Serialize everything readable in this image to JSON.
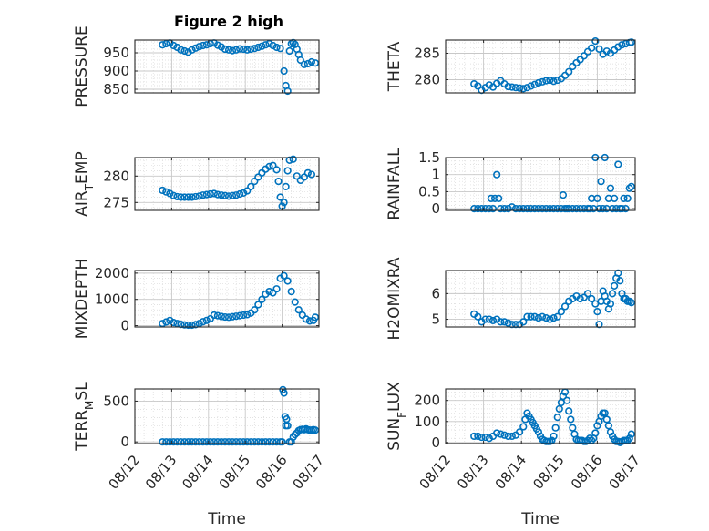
{
  "figure": {
    "title": "Figure 2 high"
  },
  "colors": {
    "marker": "#0072BD",
    "axis": "#262626",
    "grid": "#d9d9d9",
    "background": "#ffffff"
  },
  "chart_data": [
    {
      "type": "scatter",
      "ylabel": "PRESSURE",
      "ylim": [
        840,
        985
      ],
      "yticks": [
        850,
        900,
        950
      ],
      "xlim": [
        0,
        5
      ],
      "grid": true,
      "x": [
        0.75,
        0.85,
        0.95,
        1.05,
        1.15,
        1.25,
        1.35,
        1.45,
        1.55,
        1.65,
        1.75,
        1.85,
        1.95,
        2.05,
        2.15,
        2.25,
        2.35,
        2.45,
        2.55,
        2.65,
        2.75,
        2.85,
        2.95,
        3.05,
        3.15,
        3.25,
        3.35,
        3.45,
        3.55,
        3.65,
        3.75,
        3.85,
        3.95,
        4.05,
        4.1,
        4.15,
        4.2,
        4.25,
        4.3,
        4.35,
        4.4,
        4.45,
        4.5,
        4.6,
        4.7,
        4.8,
        4.9
      ],
      "y": [
        972,
        975,
        977,
        970,
        965,
        958,
        955,
        952,
        958,
        963,
        967,
        970,
        972,
        975,
        977,
        971,
        966,
        960,
        958,
        956,
        958,
        961,
        960,
        958,
        960,
        962,
        965,
        968,
        972,
        975,
        970,
        965,
        962,
        900,
        860,
        845,
        955,
        975,
        978,
        973,
        960,
        945,
        930,
        918,
        920,
        925,
        922
      ]
    },
    {
      "type": "scatter",
      "ylabel": "THETA",
      "ylim": [
        277.5,
        287.5
      ],
      "yticks": [
        280,
        285
      ],
      "xlim": [
        0,
        5
      ],
      "grid": true,
      "x": [
        0.75,
        0.85,
        0.95,
        1.05,
        1.15,
        1.25,
        1.35,
        1.45,
        1.55,
        1.65,
        1.75,
        1.85,
        1.95,
        2.05,
        2.15,
        2.25,
        2.35,
        2.45,
        2.55,
        2.65,
        2.75,
        2.85,
        2.95,
        3.05,
        3.15,
        3.25,
        3.35,
        3.45,
        3.55,
        3.65,
        3.75,
        3.85,
        3.95,
        4.05,
        4.15,
        4.25,
        4.35,
        4.45,
        4.55,
        4.65,
        4.75,
        4.85,
        4.9
      ],
      "y": [
        279.2,
        278.8,
        278.0,
        278.5,
        279.0,
        278.6,
        279.3,
        279.8,
        279.2,
        278.7,
        278.6,
        278.5,
        278.4,
        278.3,
        278.5,
        278.8,
        279.1,
        279.4,
        279.6,
        279.8,
        279.9,
        279.7,
        279.9,
        280.2,
        280.8,
        281.5,
        282.5,
        283.2,
        283.8,
        284.5,
        285.3,
        286.0,
        287.3,
        285.8,
        284.8,
        285.4,
        285.0,
        285.6,
        286.2,
        286.6,
        286.8,
        287.0,
        287.1
      ]
    },
    {
      "type": "scatter",
      "ylabel": "AIR_TEMP",
      "ylim": [
        273.5,
        283.5
      ],
      "yticks": [
        275,
        280
      ],
      "xlim": [
        0,
        5
      ],
      "grid": true,
      "x": [
        0.75,
        0.85,
        0.95,
        1.05,
        1.15,
        1.25,
        1.35,
        1.45,
        1.55,
        1.65,
        1.75,
        1.85,
        1.95,
        2.05,
        2.15,
        2.25,
        2.35,
        2.45,
        2.55,
        2.65,
        2.75,
        2.85,
        2.95,
        3.05,
        3.15,
        3.25,
        3.35,
        3.45,
        3.55,
        3.65,
        3.75,
        3.85,
        3.9,
        3.95,
        4.0,
        4.05,
        4.1,
        4.15,
        4.2,
        4.3,
        4.4,
        4.5,
        4.6,
        4.7,
        4.8
      ],
      "y": [
        277.3,
        277.0,
        276.7,
        276.3,
        276.1,
        276.0,
        276.0,
        276.0,
        276.0,
        276.1,
        276.2,
        276.4,
        276.5,
        276.6,
        276.7,
        276.5,
        276.4,
        276.3,
        276.2,
        276.3,
        276.4,
        276.6,
        276.8,
        277.2,
        278.0,
        279.0,
        279.8,
        280.6,
        281.3,
        281.8,
        282.0,
        281.2,
        279.0,
        276.0,
        274.3,
        275.0,
        278.0,
        281.0,
        283.0,
        283.2,
        280.0,
        279.2,
        279.8,
        280.6,
        280.3
      ]
    },
    {
      "type": "scatter",
      "ylabel": "RAINFALL",
      "ylim": [
        -0.05,
        1.5
      ],
      "yticks": [
        0,
        0.5,
        1,
        1.5
      ],
      "xlim": [
        0,
        5
      ],
      "grid": true,
      "x": [
        0.75,
        0.85,
        0.95,
        1.05,
        1.15,
        1.2,
        1.25,
        1.3,
        1.35,
        1.4,
        1.45,
        1.55,
        1.65,
        1.75,
        1.85,
        1.95,
        2.05,
        2.15,
        2.25,
        2.35,
        2.45,
        2.55,
        2.65,
        2.75,
        2.85,
        2.95,
        3.05,
        3.1,
        3.15,
        3.2,
        3.25,
        3.35,
        3.45,
        3.55,
        3.65,
        3.75,
        3.8,
        3.85,
        3.9,
        3.95,
        4.0,
        4.05,
        4.1,
        4.15,
        4.2,
        4.25,
        4.3,
        4.35,
        4.4,
        4.45,
        4.5,
        4.55,
        4.6,
        4.65,
        4.7,
        4.75,
        4.8,
        4.85,
        4.9
      ],
      "y": [
        0,
        0,
        0,
        0,
        0,
        0.3,
        0,
        0.3,
        1.0,
        0.3,
        0,
        0,
        0,
        0.05,
        0,
        0,
        0,
        0,
        0,
        0,
        0,
        0,
        0,
        0,
        0,
        0,
        0,
        0.4,
        0,
        0,
        0,
        0,
        0,
        0,
        0,
        0,
        0,
        0.3,
        0,
        1.5,
        0.3,
        0,
        0.8,
        0,
        1.5,
        0,
        0.3,
        0.6,
        0,
        0.3,
        0,
        1.3,
        0,
        0,
        0.3,
        0,
        0.3,
        0.6,
        0.65
      ]
    },
    {
      "type": "scatter",
      "ylabel": "MIXDEPTH",
      "ylim": [
        -50,
        2100
      ],
      "yticks": [
        0,
        1000,
        2000
      ],
      "xlim": [
        0,
        5
      ],
      "grid": true,
      "x": [
        0.75,
        0.85,
        0.95,
        1.05,
        1.15,
        1.25,
        1.35,
        1.45,
        1.55,
        1.65,
        1.75,
        1.85,
        1.95,
        2.05,
        2.15,
        2.25,
        2.35,
        2.45,
        2.55,
        2.65,
        2.75,
        2.85,
        2.95,
        3.05,
        3.15,
        3.25,
        3.35,
        3.45,
        3.55,
        3.65,
        3.75,
        3.85,
        3.95,
        4.05,
        4.15,
        4.25,
        4.35,
        4.45,
        4.55,
        4.65,
        4.75,
        4.85,
        4.9
      ],
      "y": [
        80,
        140,
        200,
        120,
        80,
        50,
        30,
        20,
        20,
        40,
        80,
        150,
        200,
        260,
        400,
        380,
        350,
        330,
        320,
        340,
        360,
        380,
        400,
        420,
        480,
        600,
        800,
        1000,
        1200,
        1300,
        1250,
        1400,
        1800,
        1900,
        1700,
        1300,
        900,
        600,
        400,
        250,
        180,
        200,
        320
      ]
    },
    {
      "type": "scatter",
      "ylabel": "H2OMIXRA",
      "ylim": [
        4.7,
        6.9
      ],
      "yticks": [
        5,
        6
      ],
      "xlim": [
        0,
        5
      ],
      "grid": true,
      "x": [
        0.75,
        0.85,
        0.95,
        1.05,
        1.15,
        1.25,
        1.35,
        1.45,
        1.55,
        1.65,
        1.75,
        1.85,
        1.95,
        2.05,
        2.15,
        2.25,
        2.35,
        2.45,
        2.55,
        2.65,
        2.75,
        2.85,
        2.95,
        3.05,
        3.15,
        3.25,
        3.35,
        3.45,
        3.55,
        3.65,
        3.75,
        3.85,
        3.95,
        4.0,
        4.05,
        4.1,
        4.15,
        4.2,
        4.25,
        4.3,
        4.35,
        4.4,
        4.45,
        4.5,
        4.55,
        4.6,
        4.65,
        4.7,
        4.75,
        4.8,
        4.85,
        4.9
      ],
      "y": [
        5.2,
        5.1,
        4.9,
        5.0,
        5.0,
        4.95,
        5.0,
        4.9,
        4.9,
        4.85,
        4.8,
        4.8,
        4.8,
        4.9,
        5.1,
        5.1,
        5.1,
        5.05,
        5.1,
        5.05,
        5.0,
        5.05,
        5.1,
        5.3,
        5.5,
        5.7,
        5.8,
        5.9,
        5.8,
        5.85,
        6.0,
        5.8,
        5.6,
        5.3,
        4.8,
        5.7,
        6.1,
        5.9,
        5.7,
        5.4,
        5.6,
        6.0,
        6.3,
        6.6,
        6.8,
        6.5,
        6.0,
        5.8,
        5.8,
        5.7,
        5.7,
        5.65
      ]
    },
    {
      "type": "scatter",
      "ylabel": "TERR_MSL",
      "ylim": [
        -20,
        650
      ],
      "yticks": [
        0,
        500
      ],
      "xlim": [
        0,
        5
      ],
      "grid": true,
      "x": [
        0.75,
        0.85,
        0.95,
        1.05,
        1.15,
        1.25,
        1.35,
        1.45,
        1.55,
        1.65,
        1.75,
        1.85,
        1.95,
        2.05,
        2.15,
        2.25,
        2.35,
        2.45,
        2.55,
        2.65,
        2.75,
        2.85,
        2.95,
        3.05,
        3.15,
        3.25,
        3.35,
        3.45,
        3.55,
        3.65,
        3.75,
        3.85,
        3.95,
        4.0,
        4.02,
        4.05,
        4.08,
        4.1,
        4.12,
        4.15,
        4.2,
        4.25,
        4.3,
        4.35,
        4.4,
        4.45,
        4.5,
        4.55,
        4.6,
        4.65,
        4.7,
        4.75,
        4.8,
        4.85,
        4.9
      ],
      "y": [
        0,
        0,
        0,
        0,
        0,
        0,
        0,
        0,
        0,
        0,
        0,
        0,
        0,
        0,
        0,
        0,
        0,
        0,
        0,
        0,
        0,
        0,
        0,
        0,
        0,
        0,
        0,
        0,
        0,
        0,
        0,
        0,
        0,
        0,
        640,
        600,
        310,
        200,
        280,
        200,
        0,
        0,
        60,
        90,
        110,
        140,
        150,
        155,
        150,
        160,
        150,
        145,
        145,
        150,
        145
      ]
    },
    {
      "type": "scatter",
      "ylabel": "SUN_FLUX",
      "ylim": [
        -5,
        255
      ],
      "yticks": [
        0,
        100,
        200
      ],
      "xlim": [
        0,
        5
      ],
      "grid": true,
      "x": [
        0.75,
        0.85,
        0.95,
        1.05,
        1.15,
        1.25,
        1.35,
        1.45,
        1.55,
        1.65,
        1.75,
        1.85,
        1.95,
        2.05,
        2.1,
        2.15,
        2.2,
        2.25,
        2.3,
        2.35,
        2.4,
        2.45,
        2.5,
        2.55,
        2.6,
        2.65,
        2.7,
        2.75,
        2.8,
        2.85,
        2.9,
        2.95,
        3.0,
        3.05,
        3.1,
        3.15,
        3.2,
        3.25,
        3.3,
        3.35,
        3.4,
        3.45,
        3.5,
        3.55,
        3.6,
        3.65,
        3.7,
        3.75,
        3.8,
        3.85,
        3.9,
        3.95,
        4.0,
        4.05,
        4.1,
        4.15,
        4.2,
        4.25,
        4.3,
        4.35,
        4.4,
        4.45,
        4.5,
        4.55,
        4.6,
        4.65,
        4.7,
        4.75,
        4.8,
        4.85,
        4.9
      ],
      "y": [
        30,
        30,
        25,
        25,
        20,
        30,
        45,
        40,
        35,
        30,
        30,
        35,
        50,
        75,
        110,
        140,
        125,
        110,
        95,
        80,
        65,
        50,
        30,
        15,
        10,
        5,
        5,
        5,
        10,
        30,
        70,
        120,
        160,
        190,
        220,
        240,
        200,
        150,
        110,
        70,
        40,
        15,
        10,
        10,
        10,
        5,
        5,
        10,
        20,
        10,
        20,
        45,
        80,
        100,
        125,
        140,
        140,
        110,
        80,
        50,
        30,
        15,
        5,
        5,
        0,
        5,
        10,
        10,
        10,
        20,
        40
      ]
    }
  ],
  "xaxis": {
    "tick_labels": [
      "08/12",
      "08/13",
      "08/14",
      "08/15",
      "08/16",
      "08/17"
    ],
    "label": "Time"
  }
}
